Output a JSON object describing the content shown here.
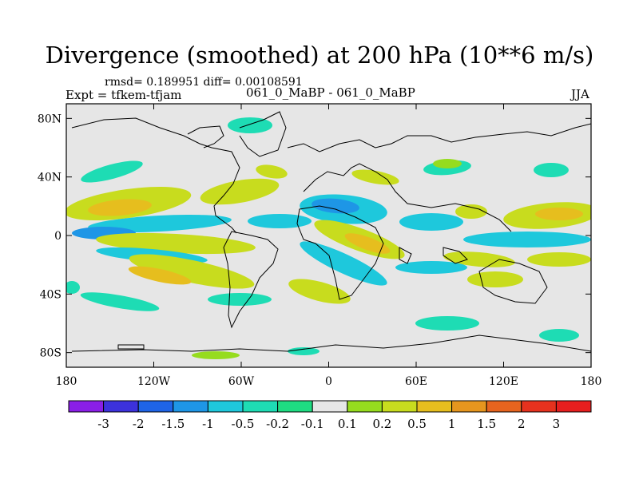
{
  "title": "Divergence (smoothed) at 200 hPa (10**6 m/s)",
  "stats": "rmsd= 0.189951 diff= 0.00108591",
  "experiment": "Expt = tfkem-tfjam",
  "cases": "061_0_MaBP - 061_0_MaBP",
  "season": "JJA",
  "axes": {
    "lat_labels": [
      "80N",
      "40N",
      "0",
      "40S",
      "80S"
    ],
    "lon_labels": [
      "180",
      "120W",
      "60W",
      "0",
      "60E",
      "120E",
      "180"
    ],
    "lat_range": [
      -90,
      90
    ],
    "lon_range": [
      -180,
      180
    ]
  },
  "colorbar": {
    "labels": [
      "-3",
      "-2",
      "-1.5",
      "-1",
      "-0.5",
      "-0.2",
      "-0.1",
      "0.1",
      "0.2",
      "0.5",
      "1",
      "1.5",
      "2",
      "3"
    ],
    "colors": [
      "#8a1ee6",
      "#3c32dc",
      "#1e64e6",
      "#1e96e6",
      "#1ec8dc",
      "#1edcb4",
      "#1edc82",
      "#e6e6e6",
      "#96dc1e",
      "#c8dc1e",
      "#e6be1e",
      "#e6961e",
      "#e6641e",
      "#e6321e",
      "#e61e1e"
    ]
  },
  "neutral_color": "#e6e6e6"
}
